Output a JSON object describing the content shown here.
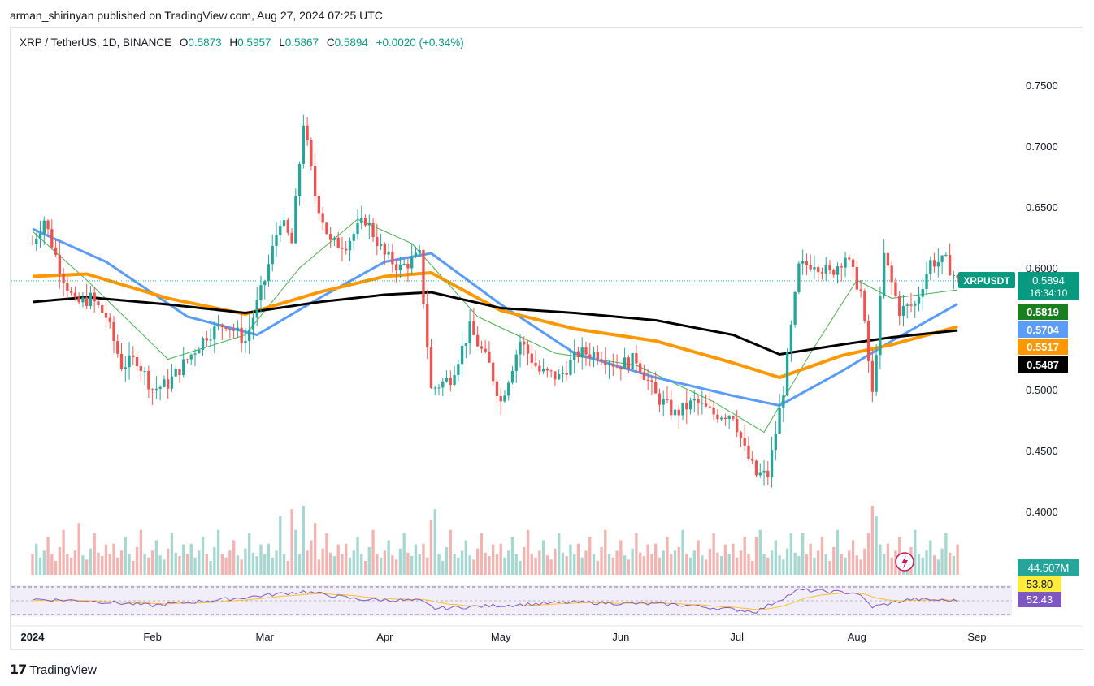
{
  "publish_line": "arman_shirinyan published on TradingView.com, Aug 27, 2024 07:25 UTC",
  "symbol": {
    "title": "XRP / TetherUS, 1D, BINANCE",
    "o_label": "O",
    "o": "0.5873",
    "h_label": "H",
    "h": "0.5957",
    "l_label": "L",
    "l": "0.5867",
    "c_label": "C",
    "c": "0.5894",
    "change": "+0.0020 (+0.34%)"
  },
  "brand": {
    "logo_icon": "tradingview-logo-icon",
    "name": "TradingView"
  },
  "colors": {
    "up": "#26a69a",
    "down": "#ef5350",
    "ma_short": "#4caf50",
    "ma_mid": "#5b9cf6",
    "ma_long": "#ff9800",
    "ma_very_long": "#000000",
    "rsi": "#7e57c2",
    "rsi_ma": "#fbc02d"
  },
  "chart_data": {
    "type": "candlestick",
    "title": "XRP / TetherUS, 1D, BINANCE",
    "y_axis": {
      "ylim": [
        0.38,
        0.77
      ],
      "ticks": [
        "0.7500",
        "0.7000",
        "0.6500",
        "0.6000",
        "0.5500",
        "0.5000",
        "0.4500",
        "0.4000"
      ],
      "tick_values": [
        0.75,
        0.7,
        0.65,
        0.6,
        0.55,
        0.5,
        0.45,
        0.4
      ]
    },
    "x_axis": {
      "range": [
        "2024-01-01",
        "2024-09-05"
      ],
      "ticks": [
        {
          "label": "2024",
          "date": "2024-01-01"
        },
        {
          "label": "Feb",
          "date": "2024-02-01"
        },
        {
          "label": "Mar",
          "date": "2024-03-01"
        },
        {
          "label": "Apr",
          "date": "2024-04-01"
        },
        {
          "label": "May",
          "date": "2024-05-01"
        },
        {
          "label": "Jun",
          "date": "2024-06-01"
        },
        {
          "label": "Jul",
          "date": "2024-07-01"
        },
        {
          "label": "Aug",
          "date": "2024-08-01"
        },
        {
          "label": "Sep",
          "date": "2024-09-01"
        }
      ]
    },
    "price_anchors": [
      [
        "2024-01-01",
        0.62
      ],
      [
        "2024-01-04",
        0.64
      ],
      [
        "2024-01-08",
        0.6
      ],
      [
        "2024-01-12",
        0.57
      ],
      [
        "2024-01-16",
        0.575
      ],
      [
        "2024-01-20",
        0.56
      ],
      [
        "2024-01-24",
        0.52
      ],
      [
        "2024-01-28",
        0.525
      ],
      [
        "2024-02-01",
        0.5
      ],
      [
        "2024-02-05",
        0.505
      ],
      [
        "2024-02-10",
        0.525
      ],
      [
        "2024-02-15",
        0.545
      ],
      [
        "2024-02-20",
        0.555
      ],
      [
        "2024-02-25",
        0.54
      ],
      [
        "2024-03-01",
        0.59
      ],
      [
        "2024-03-05",
        0.64
      ],
      [
        "2024-03-08",
        0.62
      ],
      [
        "2024-03-11",
        0.72
      ],
      [
        "2024-03-14",
        0.66
      ],
      [
        "2024-03-18",
        0.62
      ],
      [
        "2024-03-22",
        0.62
      ],
      [
        "2024-03-27",
        0.64
      ],
      [
        "2024-04-01",
        0.61
      ],
      [
        "2024-04-05",
        0.6
      ],
      [
        "2024-04-10",
        0.61
      ],
      [
        "2024-04-13",
        0.5
      ],
      [
        "2024-04-18",
        0.51
      ],
      [
        "2024-04-23",
        0.55
      ],
      [
        "2024-04-28",
        0.52
      ],
      [
        "2024-05-01",
        0.49
      ],
      [
        "2024-05-06",
        0.54
      ],
      [
        "2024-05-11",
        0.515
      ],
      [
        "2024-05-16",
        0.51
      ],
      [
        "2024-05-21",
        0.53
      ],
      [
        "2024-05-26",
        0.53
      ],
      [
        "2024-05-31",
        0.52
      ],
      [
        "2024-06-05",
        0.525
      ],
      [
        "2024-06-10",
        0.495
      ],
      [
        "2024-06-15",
        0.48
      ],
      [
        "2024-06-20",
        0.49
      ],
      [
        "2024-06-25",
        0.48
      ],
      [
        "2024-06-30",
        0.48
      ],
      [
        "2024-07-03",
        0.45
      ],
      [
        "2024-07-06",
        0.43
      ],
      [
        "2024-07-09",
        0.43
      ],
      [
        "2024-07-13",
        0.5
      ],
      [
        "2024-07-17",
        0.6
      ],
      [
        "2024-07-21",
        0.605
      ],
      [
        "2024-07-25",
        0.595
      ],
      [
        "2024-07-29",
        0.61
      ],
      [
        "2024-08-02",
        0.58
      ],
      [
        "2024-08-05",
        0.495
      ],
      [
        "2024-08-08",
        0.61
      ],
      [
        "2024-08-12",
        0.565
      ],
      [
        "2024-08-16",
        0.57
      ],
      [
        "2024-08-20",
        0.605
      ],
      [
        "2024-08-24",
        0.605
      ],
      [
        "2024-08-27",
        0.589
      ]
    ],
    "moving_averages": [
      {
        "color_key": "ma_short",
        "points": [
          [
            "2024-01-01",
            0.63
          ],
          [
            "2024-01-15",
            0.59
          ],
          [
            "2024-02-05",
            0.525
          ],
          [
            "2024-02-25",
            0.545
          ],
          [
            "2024-03-10",
            0.6
          ],
          [
            "2024-03-25",
            0.64
          ],
          [
            "2024-04-08",
            0.62
          ],
          [
            "2024-04-25",
            0.56
          ],
          [
            "2024-05-15",
            0.53
          ],
          [
            "2024-06-05",
            0.52
          ],
          [
            "2024-06-25",
            0.49
          ],
          [
            "2024-07-08",
            0.465
          ],
          [
            "2024-07-20",
            0.53
          ],
          [
            "2024-08-01",
            0.59
          ],
          [
            "2024-08-10",
            0.575
          ],
          [
            "2024-08-27",
            0.582
          ]
        ]
      },
      {
        "color_key": "ma_mid",
        "points": [
          [
            "2024-01-01",
            0.632
          ],
          [
            "2024-01-20",
            0.605
          ],
          [
            "2024-02-10",
            0.56
          ],
          [
            "2024-02-28",
            0.545
          ],
          [
            "2024-03-15",
            0.575
          ],
          [
            "2024-04-01",
            0.605
          ],
          [
            "2024-04-13",
            0.612
          ],
          [
            "2024-05-01",
            0.57
          ],
          [
            "2024-05-20",
            0.53
          ],
          [
            "2024-06-10",
            0.51
          ],
          [
            "2024-06-30",
            0.495
          ],
          [
            "2024-07-12",
            0.487
          ],
          [
            "2024-07-28",
            0.515
          ],
          [
            "2024-08-10",
            0.54
          ],
          [
            "2024-08-27",
            0.5704
          ]
        ]
      },
      {
        "color_key": "ma_long",
        "points": [
          [
            "2024-01-01",
            0.593
          ],
          [
            "2024-01-15",
            0.595
          ],
          [
            "2024-02-05",
            0.575
          ],
          [
            "2024-02-25",
            0.562
          ],
          [
            "2024-03-15",
            0.58
          ],
          [
            "2024-04-01",
            0.593
          ],
          [
            "2024-04-13",
            0.596
          ],
          [
            "2024-05-01",
            0.565
          ],
          [
            "2024-05-20",
            0.55
          ],
          [
            "2024-06-10",
            0.54
          ],
          [
            "2024-06-30",
            0.522
          ],
          [
            "2024-07-12",
            0.51
          ],
          [
            "2024-07-28",
            0.528
          ],
          [
            "2024-08-10",
            0.537
          ],
          [
            "2024-08-27",
            0.5517
          ]
        ]
      },
      {
        "color_key": "ma_very_long",
        "points": [
          [
            "2024-01-01",
            0.572
          ],
          [
            "2024-01-15",
            0.576
          ],
          [
            "2024-02-05",
            0.57
          ],
          [
            "2024-02-25",
            0.563
          ],
          [
            "2024-03-15",
            0.572
          ],
          [
            "2024-04-01",
            0.578
          ],
          [
            "2024-04-13",
            0.58
          ],
          [
            "2024-05-01",
            0.567
          ],
          [
            "2024-05-20",
            0.563
          ],
          [
            "2024-06-10",
            0.557
          ],
          [
            "2024-06-30",
            0.545
          ],
          [
            "2024-07-12",
            0.529
          ],
          [
            "2024-07-28",
            0.537
          ],
          [
            "2024-08-10",
            0.543
          ],
          [
            "2024-08-27",
            0.5487
          ]
        ]
      }
    ],
    "volume_pattern": [
      0.3,
      0.45,
      0.25,
      0.35,
      0.55,
      0.3,
      0.2,
      0.4,
      0.65,
      0.3,
      0.25,
      0.35,
      0.5,
      0.28,
      0.22,
      0.38,
      0.6,
      0.32,
      0.27,
      0.44
    ],
    "volume_spikes": [
      [
        "2024-03-05",
        0.85
      ],
      [
        "2024-03-08",
        0.95
      ],
      [
        "2024-03-11",
        1.0
      ],
      [
        "2024-03-14",
        0.75
      ],
      [
        "2024-04-13",
        0.8
      ],
      [
        "2024-04-14",
        0.95
      ],
      [
        "2024-07-06",
        0.55
      ],
      [
        "2024-07-18",
        0.6
      ],
      [
        "2024-08-05",
        1.0
      ],
      [
        "2024-08-06",
        0.85
      ],
      [
        "2024-01-13",
        0.75
      ],
      [
        "2024-06-15",
        0.35
      ]
    ],
    "rsi_anchors": [
      [
        "2024-01-01",
        0.55
      ],
      [
        "2024-01-15",
        0.5
      ],
      [
        "2024-02-01",
        0.35
      ],
      [
        "2024-02-20",
        0.55
      ],
      [
        "2024-03-11",
        0.8
      ],
      [
        "2024-03-25",
        0.55
      ],
      [
        "2024-04-10",
        0.5
      ],
      [
        "2024-04-14",
        0.25
      ],
      [
        "2024-05-01",
        0.35
      ],
      [
        "2024-05-20",
        0.45
      ],
      [
        "2024-06-15",
        0.38
      ],
      [
        "2024-07-06",
        0.15
      ],
      [
        "2024-07-17",
        0.85
      ],
      [
        "2024-08-01",
        0.75
      ],
      [
        "2024-08-05",
        0.3
      ],
      [
        "2024-08-15",
        0.55
      ],
      [
        "2024-08-27",
        0.5
      ]
    ],
    "price_labels": [
      {
        "text": "0.5894",
        "sub": "16:34:10",
        "value": 0.5894,
        "color_key": "up",
        "prefix": "XRPUSDT"
      },
      {
        "text": "0.5819",
        "value": 0.5819,
        "color_key": "ma_short_label"
      },
      {
        "text": "0.5704",
        "value": 0.5704,
        "color_key": "ma_mid"
      },
      {
        "text": "0.5517",
        "value": 0.5517,
        "color_key": "ma_long"
      },
      {
        "text": "0.5487",
        "value": 0.5487,
        "color_key": "ma_very_long"
      }
    ],
    "volume_label": "44.507M",
    "rsi_labels": [
      {
        "text": "53.80",
        "color": "#ffeb3b",
        "fg": "#131722"
      },
      {
        "text": "52.43",
        "color": "#7e57c2",
        "fg": "#ffffff"
      }
    ]
  }
}
